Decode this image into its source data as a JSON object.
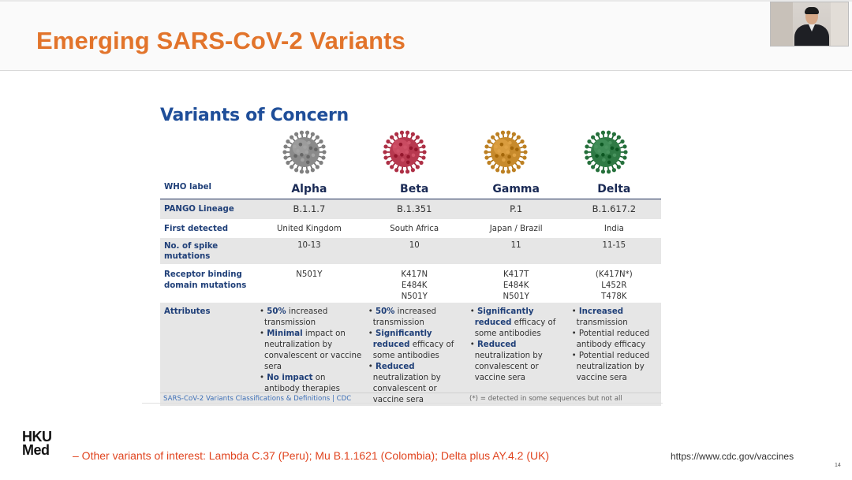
{
  "slide": {
    "title": "Emerging SARS-CoV-2 Variants",
    "figure_title": "Variants of Concern",
    "table": {
      "row_labels": {
        "who": "WHO label",
        "pango": "PANGO Lineage",
        "first": "First detected",
        "spike": "No. of spike mutations",
        "rbd": "Receptor binding domain mutations",
        "attr": "Attributes"
      },
      "variants": [
        {
          "who": "Alpha",
          "pango": "B.1.1.7",
          "first": "United Kingdom",
          "spike": "10-13",
          "rbd": [
            "N501Y"
          ],
          "virus_color": "#8a8a8a",
          "attributes": [
            {
              "bold": "50%",
              "text": " increased transmission"
            },
            {
              "bold": "Minimal",
              "text": " impact on neutralization by convalescent or vaccine sera"
            },
            {
              "bold": "No impact",
              "text": " on antibody therapies"
            }
          ]
        },
        {
          "who": "Beta",
          "pango": "B.1.351",
          "first": "South Africa",
          "spike": "10",
          "rbd": [
            "K417N",
            "E484K",
            "N501Y"
          ],
          "virus_color": "#b7394f",
          "attributes": [
            {
              "bold": "50%",
              "text": " increased transmission"
            },
            {
              "bold": "Significantly reduced",
              "text": " efficacy of some antibodies"
            },
            {
              "bold": "Reduced",
              "text": " neutralization by convalescent or vaccine sera"
            }
          ]
        },
        {
          "who": "Gamma",
          "pango": "P.1",
          "first": "Japan / Brazil",
          "spike": "11",
          "rbd": [
            "K417T",
            "E484K",
            "N501Y"
          ],
          "virus_color": "#c78a2c",
          "attributes": [
            {
              "bold": "Significantly reduced",
              "text": " efficacy of some antibodies"
            },
            {
              "bold": "Reduced",
              "text": " neutralization by convalescent or vaccine sera"
            }
          ]
        },
        {
          "who": "Delta",
          "pango": "B.1.617.2",
          "first": "India",
          "spike": "11-15",
          "rbd": [
            "(K417N*)",
            "L452R",
            "T478K"
          ],
          "virus_color": "#2f7a45",
          "attributes": [
            {
              "bold": "Increased",
              "text": " transmission"
            },
            {
              "bold": "",
              "text": "Potential reduced antibody efficacy"
            },
            {
              "bold": "",
              "text": "Potential reduced neutralization by vaccine sera"
            }
          ]
        }
      ]
    },
    "source": "SARS-CoV-2 Variants Classifications & Definitions | CDC",
    "footnote": "(*) = detected in some sequences but not all",
    "note": "– Other variants of interest: Lambda C.37 (Peru); Mu B.1.1621 (Colombia); Delta plus AY.4.2 (UK)",
    "url": "https://www.cdc.gov/vaccines",
    "page_number": "14",
    "logo_line1": "HKU",
    "logo_line2": "Med",
    "colors": {
      "title": "#e2742b",
      "heading": "#1f4e99",
      "note": "#e0441f"
    }
  }
}
